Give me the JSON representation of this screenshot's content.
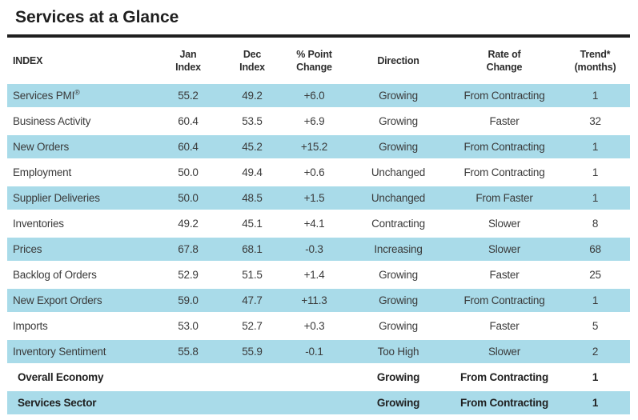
{
  "title": "Services at a Glance",
  "colors": {
    "row_shade": "#a9dbe9",
    "text": "#3a3a3a",
    "strong": "#1f1f1f"
  },
  "table": {
    "columns": [
      {
        "key": "name",
        "label": "INDEX",
        "align": "left"
      },
      {
        "key": "jan",
        "label": "Jan\nIndex"
      },
      {
        "key": "dec",
        "label": "Dec\nIndex"
      },
      {
        "key": "change",
        "label": "% Point\nChange"
      },
      {
        "key": "direction",
        "label": "Direction"
      },
      {
        "key": "rate",
        "label": "Rate of\nChange"
      },
      {
        "key": "trend",
        "label": "Trend*\n(months)"
      }
    ],
    "rows": [
      {
        "name": "Services PMI",
        "sup": "®",
        "jan": "55.2",
        "dec": "49.2",
        "change": "+6.0",
        "direction": "Growing",
        "rate": "From Contracting",
        "trend": "1",
        "shaded": true,
        "bold": false
      },
      {
        "name": "Business Activity",
        "jan": "60.4",
        "dec": "53.5",
        "change": "+6.9",
        "direction": "Growing",
        "rate": "Faster",
        "trend": "32",
        "shaded": false,
        "bold": false
      },
      {
        "name": "New Orders",
        "jan": "60.4",
        "dec": "45.2",
        "change": "+15.2",
        "direction": "Growing",
        "rate": "From Contracting",
        "trend": "1",
        "shaded": true,
        "bold": false
      },
      {
        "name": "Employment",
        "jan": "50.0",
        "dec": "49.4",
        "change": "+0.6",
        "direction": "Unchanged",
        "rate": "From Contracting",
        "trend": "1",
        "shaded": false,
        "bold": false
      },
      {
        "name": "Supplier Deliveries",
        "jan": "50.0",
        "dec": "48.5",
        "change": "+1.5",
        "direction": "Unchanged",
        "rate": "From Faster",
        "trend": "1",
        "shaded": true,
        "bold": false
      },
      {
        "name": "Inventories",
        "jan": "49.2",
        "dec": "45.1",
        "change": "+4.1",
        "direction": "Contracting",
        "rate": "Slower",
        "trend": "8",
        "shaded": false,
        "bold": false
      },
      {
        "name": "Prices",
        "jan": "67.8",
        "dec": "68.1",
        "change": "-0.3",
        "direction": "Increasing",
        "rate": "Slower",
        "trend": "68",
        "shaded": true,
        "bold": false
      },
      {
        "name": "Backlog of Orders",
        "jan": "52.9",
        "dec": "51.5",
        "change": "+1.4",
        "direction": "Growing",
        "rate": "Faster",
        "trend": "25",
        "shaded": false,
        "bold": false
      },
      {
        "name": "New Export Orders",
        "jan": "59.0",
        "dec": "47.7",
        "change": "+11.3",
        "direction": "Growing",
        "rate": "From Contracting",
        "trend": "1",
        "shaded": true,
        "bold": false
      },
      {
        "name": "Imports",
        "jan": "53.0",
        "dec": "52.7",
        "change": "+0.3",
        "direction": "Growing",
        "rate": "Faster",
        "trend": "5",
        "shaded": false,
        "bold": false
      },
      {
        "name": "Inventory Sentiment",
        "jan": "55.8",
        "dec": "55.9",
        "change": "-0.1",
        "direction": "Too High",
        "rate": "Slower",
        "trend": "2",
        "shaded": true,
        "bold": false
      },
      {
        "name": "Overall Economy",
        "jan": "",
        "dec": "",
        "change": "",
        "direction": "Growing",
        "rate": "From Contracting",
        "trend": "1",
        "shaded": false,
        "bold": true
      },
      {
        "name": "Services Sector",
        "jan": "",
        "dec": "",
        "change": "",
        "direction": "Growing",
        "rate": "From Contracting",
        "trend": "1",
        "shaded": true,
        "bold": true
      }
    ]
  },
  "chart_data": {
    "type": "table",
    "title": "Services at a Glance",
    "columns": [
      "INDEX",
      "Jan Index",
      "Dec Index",
      "% Point Change",
      "Direction",
      "Rate of Change",
      "Trend* (months)"
    ],
    "rows": [
      [
        "Services PMI®",
        55.2,
        49.2,
        "+6.0",
        "Growing",
        "From Contracting",
        1
      ],
      [
        "Business Activity",
        60.4,
        53.5,
        "+6.9",
        "Growing",
        "Faster",
        32
      ],
      [
        "New Orders",
        60.4,
        45.2,
        "+15.2",
        "Growing",
        "From Contracting",
        1
      ],
      [
        "Employment",
        50.0,
        49.4,
        "+0.6",
        "Unchanged",
        "From Contracting",
        1
      ],
      [
        "Supplier Deliveries",
        50.0,
        48.5,
        "+1.5",
        "Unchanged",
        "From Faster",
        1
      ],
      [
        "Inventories",
        49.2,
        45.1,
        "+4.1",
        "Contracting",
        "Slower",
        8
      ],
      [
        "Prices",
        67.8,
        68.1,
        "-0.3",
        "Increasing",
        "Slower",
        68
      ],
      [
        "Backlog of Orders",
        52.9,
        51.5,
        "+1.4",
        "Growing",
        "Faster",
        25
      ],
      [
        "New Export Orders",
        59.0,
        47.7,
        "+11.3",
        "Growing",
        "From Contracting",
        1
      ],
      [
        "Imports",
        53.0,
        52.7,
        "+0.3",
        "Growing",
        "Faster",
        5
      ],
      [
        "Inventory Sentiment",
        55.8,
        55.9,
        "-0.1",
        "Too High",
        "Slower",
        2
      ],
      [
        "Overall Economy",
        null,
        null,
        null,
        "Growing",
        "From Contracting",
        1
      ],
      [
        "Services Sector",
        null,
        null,
        null,
        "Growing",
        "From Contracting",
        1
      ]
    ],
    "layout": {
      "striped": true,
      "stripe_color": "#a9dbe9",
      "bold_rows": [
        "Overall Economy",
        "Services Sector"
      ]
    }
  }
}
